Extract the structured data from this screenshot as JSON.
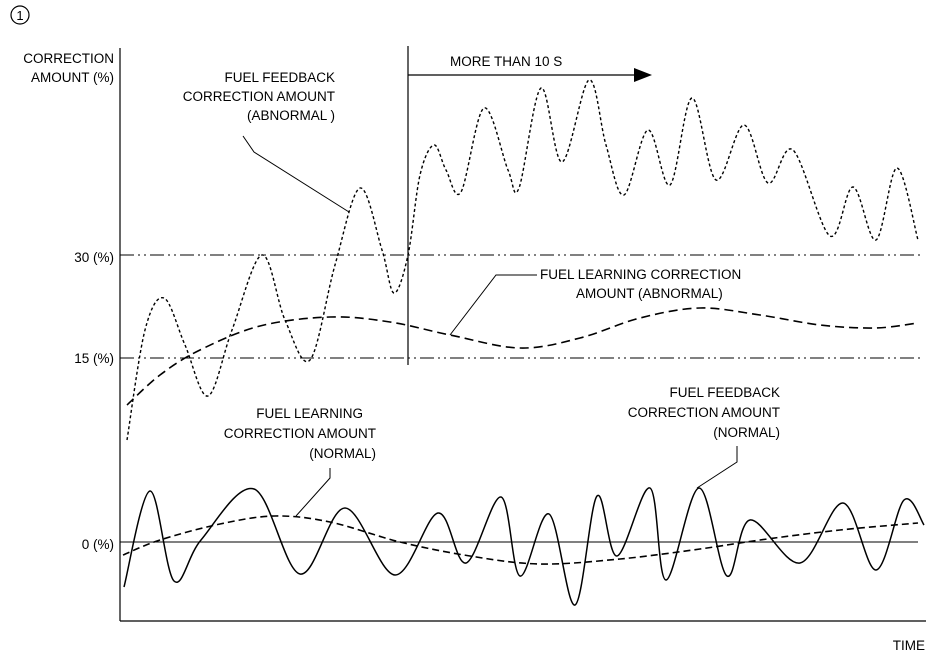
{
  "figure_number": "1",
  "axes": {
    "y_label_line1": "CORRECTION",
    "y_label_line2": "AMOUNT (%)",
    "x_label": "TIME",
    "ticks": [
      "30 (%)",
      "15 (%)",
      "0 (%)"
    ]
  },
  "threshold": {
    "label": "MORE THAN 10 S"
  },
  "annotations": {
    "feedback_abnormal": [
      "FUEL FEEDBACK",
      "CORRECTION AMOUNT",
      "(ABNORMAL )"
    ],
    "learning_abnormal": [
      "FUEL LEARNING CORRECTION",
      "AMOUNT (ABNORMAL)"
    ],
    "learning_normal": [
      "FUEL LEARNING",
      "CORRECTION AMOUNT",
      "(NORMAL)"
    ],
    "feedback_normal": [
      "FUEL FEEDBACK",
      "CORRECTION AMOUNT",
      "(NORMAL)"
    ]
  },
  "style": {
    "line_color": "#000000",
    "background": "#ffffff"
  }
}
